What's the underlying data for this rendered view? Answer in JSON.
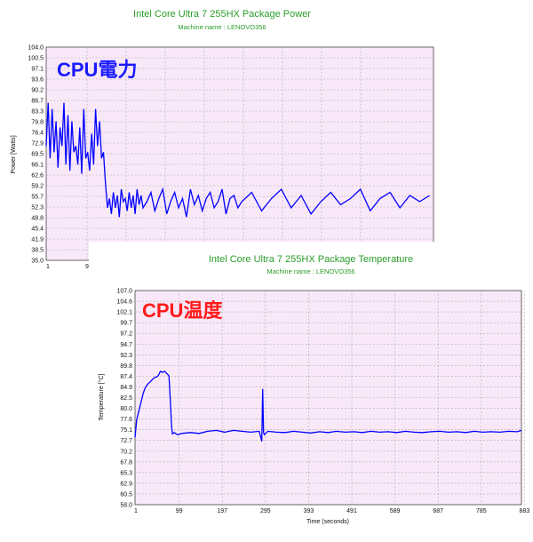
{
  "charts": [
    {
      "title": "Intel Core Ultra 7 255HX Package Power",
      "subtitle": "Machine name : LENOVO356",
      "overlay_label": "CPU電力",
      "overlay_color": "#1a1aff",
      "ylabel": "Power [Watts]",
      "xlabel": "",
      "yticks": [
        "104.0",
        "100.5",
        "97.1",
        "93.6",
        "90.2",
        "86.7",
        "83.3",
        "79.8",
        "76.4",
        "72.9",
        "69.5",
        "66.1",
        "62.6",
        "59.2",
        "55.7",
        "52.3",
        "48.8",
        "45.4",
        "41.9",
        "38.5",
        "35.0"
      ],
      "xticks": [
        "1",
        "9"
      ]
    },
    {
      "title": "Intel Core Ultra 7 255HX Package Temperature",
      "subtitle": "Machine name : LENOVO356",
      "overlay_label": "CPU温度",
      "overlay_color": "#ff1a1a",
      "ylabel": "Temperature [°C]",
      "xlabel": "Time (seconds)",
      "yticks": [
        "107.0",
        "104.6",
        "102.1",
        "99.7",
        "97.2",
        "94.7",
        "92.3",
        "89.8",
        "87.4",
        "84.9",
        "82.5",
        "80.0",
        "77.6",
        "75.1",
        "72.7",
        "70.2",
        "67.8",
        "65.3",
        "62.9",
        "60.5",
        "58.0"
      ],
      "xticks": [
        "1",
        "99",
        "197",
        "295",
        "393",
        "491",
        "589",
        "687",
        "785",
        "883"
      ]
    }
  ],
  "chart_data": [
    {
      "type": "line",
      "title": "Intel Core Ultra 7 255HX Package Power",
      "subtitle": "Machine name : LENOVO356",
      "ylabel": "Power [Watts]",
      "xlabel": "",
      "ylim": [
        35.0,
        104.0
      ],
      "xlim": [
        1,
        197
      ],
      "grid": true,
      "series": [
        {
          "color": "#0000ff",
          "x": [
            1,
            2,
            3,
            4,
            5,
            6,
            7,
            8,
            9,
            10,
            11,
            12,
            13,
            14,
            15,
            16,
            17,
            18,
            19,
            20,
            21,
            22,
            23,
            24,
            25,
            26,
            27,
            28,
            29,
            30,
            31,
            32,
            33,
            34,
            35,
            36,
            37,
            38,
            39,
            40,
            41,
            42,
            43,
            44,
            45,
            46,
            47,
            48,
            49,
            50,
            52,
            54,
            56,
            58,
            60,
            62,
            64,
            66,
            68,
            70,
            72,
            74,
            76,
            78,
            80,
            82,
            84,
            86,
            88,
            90,
            92,
            94,
            96,
            98,
            100,
            105,
            110,
            115,
            120,
            125,
            130,
            135,
            140,
            145,
            150,
            155,
            160,
            165,
            170,
            175,
            180,
            185,
            190,
            195
          ],
          "values": [
            72,
            86,
            68,
            84,
            70,
            80,
            65,
            78,
            72,
            86,
            66,
            82,
            64,
            80,
            70,
            72,
            66,
            78,
            63,
            84,
            68,
            70,
            64,
            76,
            66,
            84,
            72,
            80,
            68,
            70,
            60,
            52,
            55,
            50,
            57,
            52,
            56,
            49,
            58,
            54,
            55,
            51,
            57,
            52,
            56,
            50,
            58,
            53,
            56,
            52,
            54,
            57,
            51,
            55,
            58,
            50,
            54,
            57,
            52,
            55,
            49,
            58,
            53,
            56,
            51,
            55,
            57,
            52,
            54,
            58,
            50,
            55,
            56,
            52,
            54,
            57,
            51,
            55,
            58,
            52,
            56,
            50,
            54,
            57,
            53,
            55,
            58,
            51,
            55,
            57,
            52,
            56,
            54,
            56
          ]
        }
      ]
    },
    {
      "type": "line",
      "title": "Intel Core Ultra 7 255HX Package Temperature",
      "subtitle": "Machine name : LENOVO356",
      "ylabel": "Temperature [°C]",
      "xlabel": "Time (seconds)",
      "ylim": [
        58.0,
        107.0
      ],
      "xlim": [
        1,
        900
      ],
      "grid": true,
      "series": [
        {
          "color": "#0000ff",
          "x": [
            1,
            5,
            10,
            15,
            20,
            25,
            30,
            35,
            40,
            45,
            50,
            55,
            60,
            65,
            70,
            75,
            80,
            84,
            86,
            88,
            92,
            100,
            110,
            130,
            150,
            170,
            190,
            210,
            230,
            250,
            270,
            290,
            296,
            298,
            300,
            302,
            310,
            330,
            350,
            370,
            390,
            410,
            430,
            450,
            470,
            490,
            510,
            530,
            550,
            570,
            590,
            610,
            630,
            650,
            670,
            690,
            710,
            730,
            750,
            770,
            790,
            810,
            830,
            850,
            870,
            890,
            900
          ],
          "values": [
            73.4,
            77.5,
            79.5,
            81.5,
            83.5,
            84.8,
            85.5,
            86.0,
            86.5,
            87.0,
            87.2,
            87.5,
            88.5,
            88.3,
            88.5,
            88.0,
            87.5,
            80.0,
            76.0,
            74.2,
            74.5,
            74.0,
            74.3,
            74.5,
            74.3,
            74.8,
            75.0,
            74.6,
            75.0,
            74.8,
            74.6,
            74.8,
            72.5,
            84.5,
            74.5,
            74.0,
            74.8,
            74.6,
            74.5,
            74.8,
            74.6,
            74.4,
            74.7,
            74.5,
            74.8,
            74.6,
            74.7,
            74.5,
            74.8,
            74.6,
            74.7,
            74.5,
            74.8,
            74.6,
            74.5,
            74.7,
            74.8,
            74.6,
            74.7,
            74.5,
            74.8,
            74.6,
            74.7,
            74.6,
            74.8,
            74.7,
            75.0
          ]
        }
      ]
    }
  ]
}
